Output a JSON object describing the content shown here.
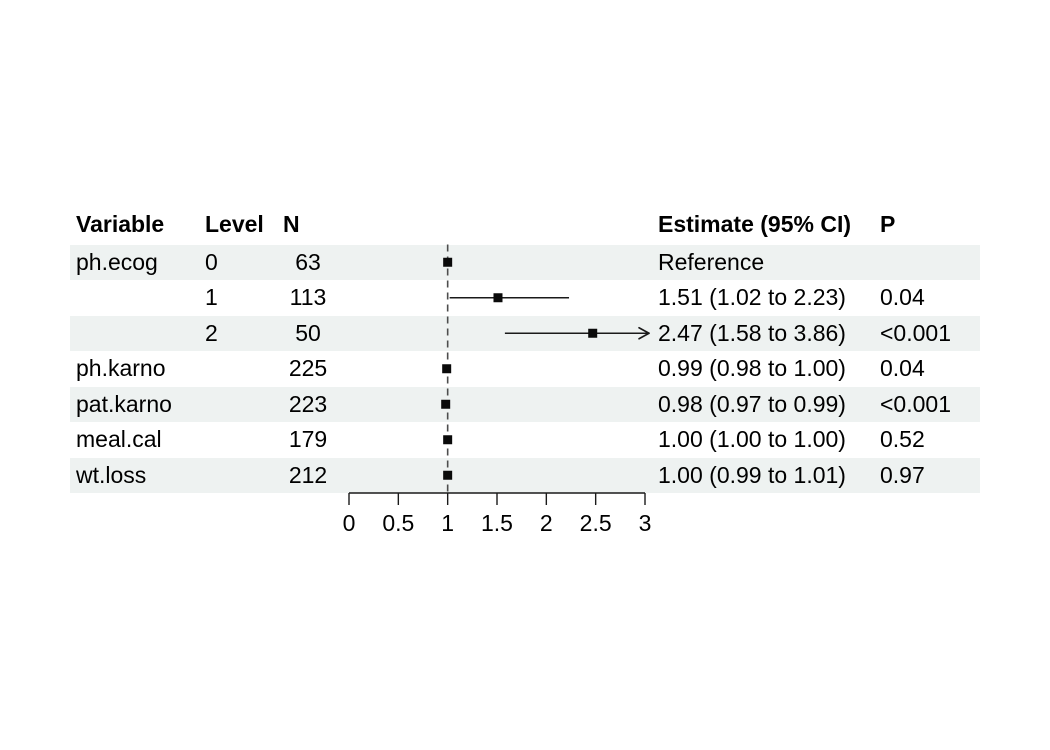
{
  "chart_data": {
    "type": "forest",
    "title": "",
    "xlabel": "",
    "ylabel": "",
    "xlim": [
      0,
      3
    ],
    "x_ticks": [
      0,
      0.5,
      1,
      1.5,
      2,
      2.5,
      3
    ],
    "reference_line_x": 1,
    "grid": false,
    "legend": "none",
    "columns": [
      "Variable",
      "Level",
      "N",
      "Estimate (95% CI)",
      "P"
    ],
    "rows": [
      {
        "variable": "ph.ecog",
        "level": "0",
        "n": "63",
        "estimate_label": "Reference",
        "p": "",
        "estimate": 1.0,
        "ci_low": null,
        "ci_high": null,
        "reference": true,
        "arrow_right": false,
        "striped": true
      },
      {
        "variable": "",
        "level": "1",
        "n": "113",
        "estimate_label": "1.51 (1.02 to 2.23)",
        "p": "0.04",
        "estimate": 1.51,
        "ci_low": 1.02,
        "ci_high": 2.23,
        "reference": false,
        "arrow_right": false,
        "striped": false
      },
      {
        "variable": "",
        "level": "2",
        "n": "50",
        "estimate_label": "2.47 (1.58 to 3.86)",
        "p": "<0.001",
        "estimate": 2.47,
        "ci_low": 1.58,
        "ci_high": 3.86,
        "reference": false,
        "arrow_right": true,
        "striped": true
      },
      {
        "variable": "ph.karno",
        "level": "",
        "n": "225",
        "estimate_label": "0.99 (0.98 to 1.00)",
        "p": "0.04",
        "estimate": 0.99,
        "ci_low": 0.98,
        "ci_high": 1.0,
        "reference": false,
        "arrow_right": false,
        "striped": false
      },
      {
        "variable": "pat.karno",
        "level": "",
        "n": "223",
        "estimate_label": "0.98 (0.97 to 0.99)",
        "p": "<0.001",
        "estimate": 0.98,
        "ci_low": 0.97,
        "ci_high": 0.99,
        "reference": false,
        "arrow_right": false,
        "striped": true
      },
      {
        "variable": "meal.cal",
        "level": "",
        "n": "179",
        "estimate_label": "1.00 (1.00 to 1.00)",
        "p": "0.52",
        "estimate": 1.0,
        "ci_low": 1.0,
        "ci_high": 1.0,
        "reference": false,
        "arrow_right": false,
        "striped": false
      },
      {
        "variable": "wt.loss",
        "level": "",
        "n": "212",
        "estimate_label": "1.00 (0.99 to 1.01)",
        "p": "0.97",
        "estimate": 1.0,
        "ci_low": 0.99,
        "ci_high": 1.01,
        "reference": false,
        "arrow_right": false,
        "striped": true
      }
    ]
  },
  "colors": {
    "background": "#FFFFFF",
    "stripe": "#EEF2F1",
    "text": "#000000",
    "marker": "#0A0A0A",
    "ci_line": "#1A1A1A",
    "reference_line": "#4D4D4D",
    "axis": "#1A1A1A"
  }
}
